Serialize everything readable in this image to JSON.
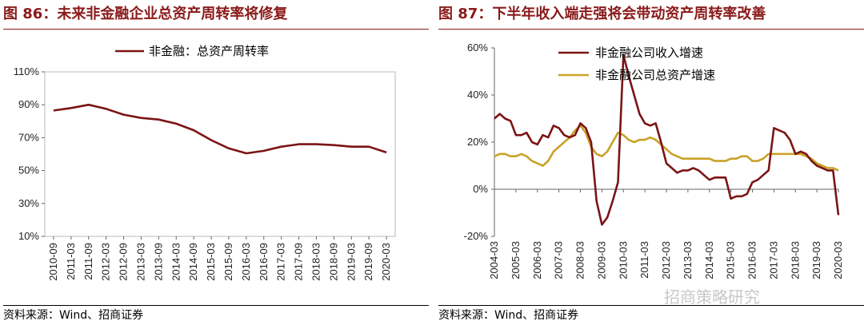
{
  "left": {
    "title": "图 86：未来非金融企业总资产周转率将修复",
    "source": "资料来源：Wind、招商证券"
  },
  "right": {
    "title": "图 87：下半年收入端走强将会带动资产周转率改善",
    "source": "资料来源：Wind、招商证券"
  },
  "watermark": "招商策略研究",
  "colors": {
    "title": "#8b1a1a",
    "series_dark": "#7b1414",
    "series_gold": "#c9a227"
  },
  "chart_data": [
    {
      "type": "line",
      "title": "",
      "ylim": [
        10,
        110
      ],
      "yticks": [
        10,
        30,
        50,
        70,
        90,
        110
      ],
      "ytick_labels": [
        "10%",
        "30%",
        "50%",
        "70%",
        "90%",
        "110%"
      ],
      "xtick_labels": [
        "2010-09",
        "2011-03",
        "2011-09",
        "2012-03",
        "2012-09",
        "2013-03",
        "2013-09",
        "2014-03",
        "2014-09",
        "2015-03",
        "2015-09",
        "2016-03",
        "2016-09",
        "2017-03",
        "2017-09",
        "2018-03",
        "2018-09",
        "2019-03",
        "2019-09",
        "2020-03"
      ],
      "legend_position": "top",
      "series": [
        {
          "name": "非金融：总资产周转率",
          "values": [
            86.5,
            88,
            90,
            87.5,
            84,
            82,
            81,
            78.5,
            74.5,
            68.5,
            63.5,
            60.5,
            62,
            64.5,
            66,
            66,
            65.5,
            64.5,
            64.5,
            61
          ]
        }
      ]
    },
    {
      "type": "line",
      "title": "",
      "ylim": [
        -20,
        60
      ],
      "yticks": [
        -20,
        0,
        20,
        40,
        60
      ],
      "ytick_labels": [
        "-20%",
        "0%",
        "20%",
        "40%",
        "60%"
      ],
      "xtick_labels": [
        "2004-03",
        "2005-03",
        "2006-03",
        "2007-03",
        "2008-03",
        "2009-03",
        "2010-03",
        "2011-03",
        "2012-03",
        "2013-03",
        "2014-03",
        "2015-03",
        "2016-03",
        "2017-03",
        "2018-03",
        "2019-03",
        "2020-03"
      ],
      "legend_position": "top-left",
      "x_start": 2004.0,
      "x_end": 2020.0,
      "series": [
        {
          "name": "非金融公司收入增速",
          "x": [
            2004.0,
            2004.25,
            2004.5,
            2004.75,
            2005.0,
            2005.25,
            2005.5,
            2005.75,
            2006.0,
            2006.25,
            2006.5,
            2006.75,
            2007.0,
            2007.25,
            2007.5,
            2007.75,
            2008.0,
            2008.25,
            2008.5,
            2008.75,
            2009.0,
            2009.25,
            2009.5,
            2009.75,
            2010.0,
            2010.25,
            2010.5,
            2010.75,
            2011.0,
            2011.25,
            2011.5,
            2011.75,
            2012.0,
            2012.25,
            2012.5,
            2012.75,
            2013.0,
            2013.25,
            2013.5,
            2013.75,
            2014.0,
            2014.25,
            2014.5,
            2014.75,
            2015.0,
            2015.25,
            2015.5,
            2015.75,
            2016.0,
            2016.25,
            2016.5,
            2016.75,
            2017.0,
            2017.25,
            2017.5,
            2017.75,
            2018.0,
            2018.25,
            2018.5,
            2018.75,
            2019.0,
            2019.25,
            2019.5,
            2019.75,
            2020.0
          ],
          "values": [
            30,
            32,
            30,
            29,
            23,
            23,
            24,
            20,
            19,
            23,
            22,
            27,
            26,
            23,
            22,
            23,
            28,
            26,
            20,
            -5,
            -15,
            -12,
            -5,
            3,
            57,
            48,
            40,
            32,
            28,
            27,
            28,
            20,
            11,
            9,
            7,
            8,
            8,
            9,
            8,
            6,
            4,
            5,
            5,
            5,
            -4,
            -3,
            -3,
            -2,
            3,
            4,
            6,
            8,
            26,
            25,
            24,
            21,
            15,
            16,
            15,
            12,
            10,
            9,
            8,
            8,
            -11
          ]
        },
        {
          "name": "非金融公司总资产增速",
          "x": [
            2004.0,
            2004.25,
            2004.5,
            2004.75,
            2005.0,
            2005.25,
            2005.5,
            2005.75,
            2006.0,
            2006.25,
            2006.5,
            2006.75,
            2007.0,
            2007.25,
            2007.5,
            2007.75,
            2008.0,
            2008.25,
            2008.5,
            2008.75,
            2009.0,
            2009.25,
            2009.5,
            2009.75,
            2010.0,
            2010.25,
            2010.5,
            2010.75,
            2011.0,
            2011.25,
            2011.5,
            2011.75,
            2012.0,
            2012.25,
            2012.5,
            2012.75,
            2013.0,
            2013.25,
            2013.5,
            2013.75,
            2014.0,
            2014.25,
            2014.5,
            2014.75,
            2015.0,
            2015.25,
            2015.5,
            2015.75,
            2016.0,
            2016.25,
            2016.5,
            2016.75,
            2017.0,
            2017.25,
            2017.5,
            2017.75,
            2018.0,
            2018.25,
            2018.5,
            2018.75,
            2019.0,
            2019.25,
            2019.5,
            2019.75,
            2020.0
          ],
          "values": [
            14,
            15,
            15,
            14,
            14,
            15,
            14,
            12,
            11,
            10,
            12,
            16,
            18,
            20,
            22,
            25,
            27,
            24,
            18,
            15,
            14,
            16,
            20,
            24,
            23,
            21,
            20,
            21,
            21,
            22,
            21,
            19,
            17,
            15,
            14,
            13,
            13,
            13,
            13,
            13,
            13,
            12,
            12,
            12,
            13,
            13,
            14,
            14,
            12,
            12,
            13,
            15,
            15,
            15,
            15,
            15,
            15,
            15,
            14,
            13,
            11,
            10,
            9,
            9,
            8
          ]
        }
      ]
    }
  ]
}
